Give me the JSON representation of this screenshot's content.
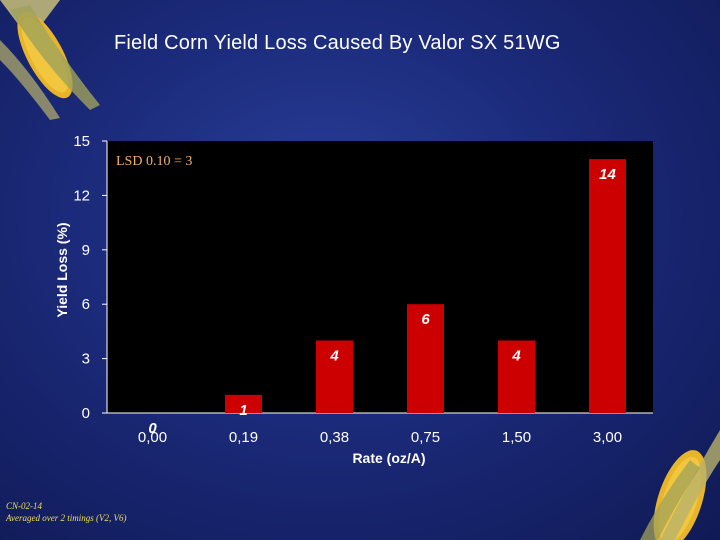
{
  "slide": {
    "title": "Field Corn Yield Loss Caused By Valor SX 51WG",
    "footnote_lines": [
      "CN-02-14",
      "Averaged over 2 timings (V2, V6)"
    ]
  },
  "chart_data": {
    "type": "bar",
    "title": "Field Corn Yield Loss Caused By Valor SX 51WG",
    "xlabel": "Rate (oz/A)",
    "ylabel": "Yield Loss (%)",
    "categories": [
      "0,00",
      "0,19",
      "0,38",
      "0,75",
      "1,50",
      "3,00"
    ],
    "values": [
      0,
      1,
      4,
      6,
      4,
      14
    ],
    "data_labels": [
      "0",
      "1",
      "4",
      "6",
      "4",
      "14"
    ],
    "ylim": [
      0,
      15
    ],
    "yticks": [
      0,
      3,
      6,
      9,
      12,
      15
    ],
    "ytick_labels": [
      "0",
      "3",
      "6",
      "9",
      "12",
      "15"
    ],
    "annotation": "LSD 0.10 = 3",
    "grid": false,
    "legend": "none",
    "colors": {
      "bar": "#cc0000",
      "plot_background": "#000000",
      "axis_text": "#ffffff",
      "annotation": "#f2b36a",
      "title": "#ffffff"
    }
  }
}
